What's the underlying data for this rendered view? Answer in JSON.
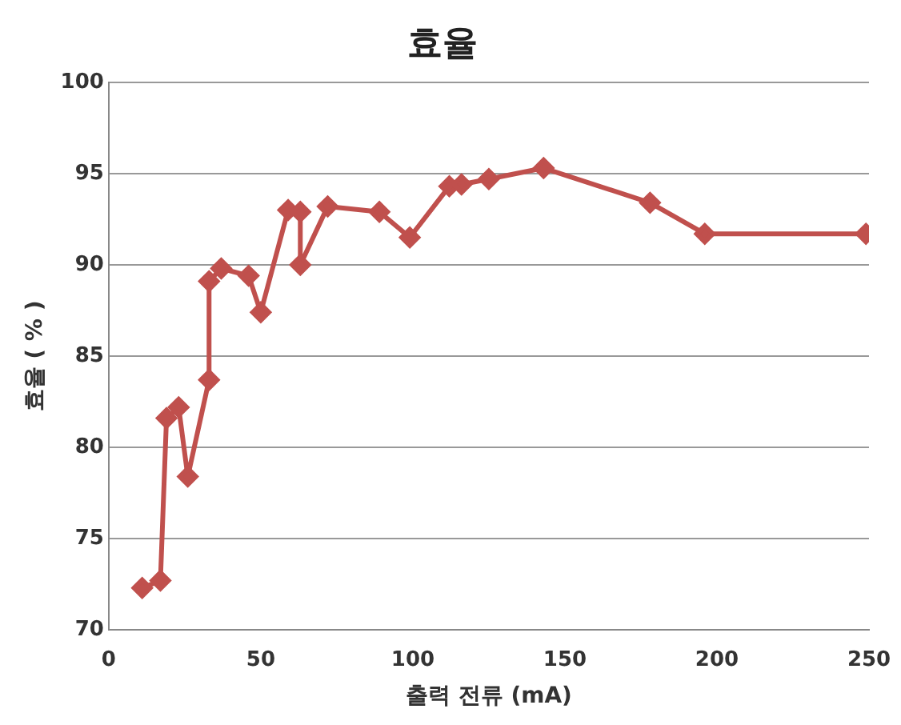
{
  "chart_data": {
    "type": "line",
    "title": "효율",
    "xlabel": "출력 전류 (mA)",
    "ylabel": "효율 ( % )",
    "x": [
      11,
      17,
      19,
      23,
      26,
      33,
      33,
      37,
      46,
      50,
      59,
      63,
      63,
      72,
      89,
      99,
      112,
      116,
      125,
      143,
      178,
      196,
      249
    ],
    "series": [
      {
        "color": "#c0504d",
        "values": [
          72.3,
          72.7,
          81.6,
          82.2,
          78.4,
          83.7,
          89.1,
          89.8,
          89.4,
          87.4,
          93,
          92.9,
          90,
          93.2,
          92.9,
          91.5,
          94.3,
          94.4,
          94.7,
          95.3,
          93.4,
          91.7,
          91.7
        ]
      }
    ],
    "xlim": [
      0,
      250
    ],
    "xticks": [
      0,
      50,
      100,
      150,
      200,
      250
    ],
    "ylim": [
      70,
      100
    ],
    "yticks": [
      70,
      75,
      80,
      85,
      90,
      95,
      100
    ],
    "grid": "y",
    "legend": false,
    "marker": "diamond",
    "line_style": "solid"
  }
}
